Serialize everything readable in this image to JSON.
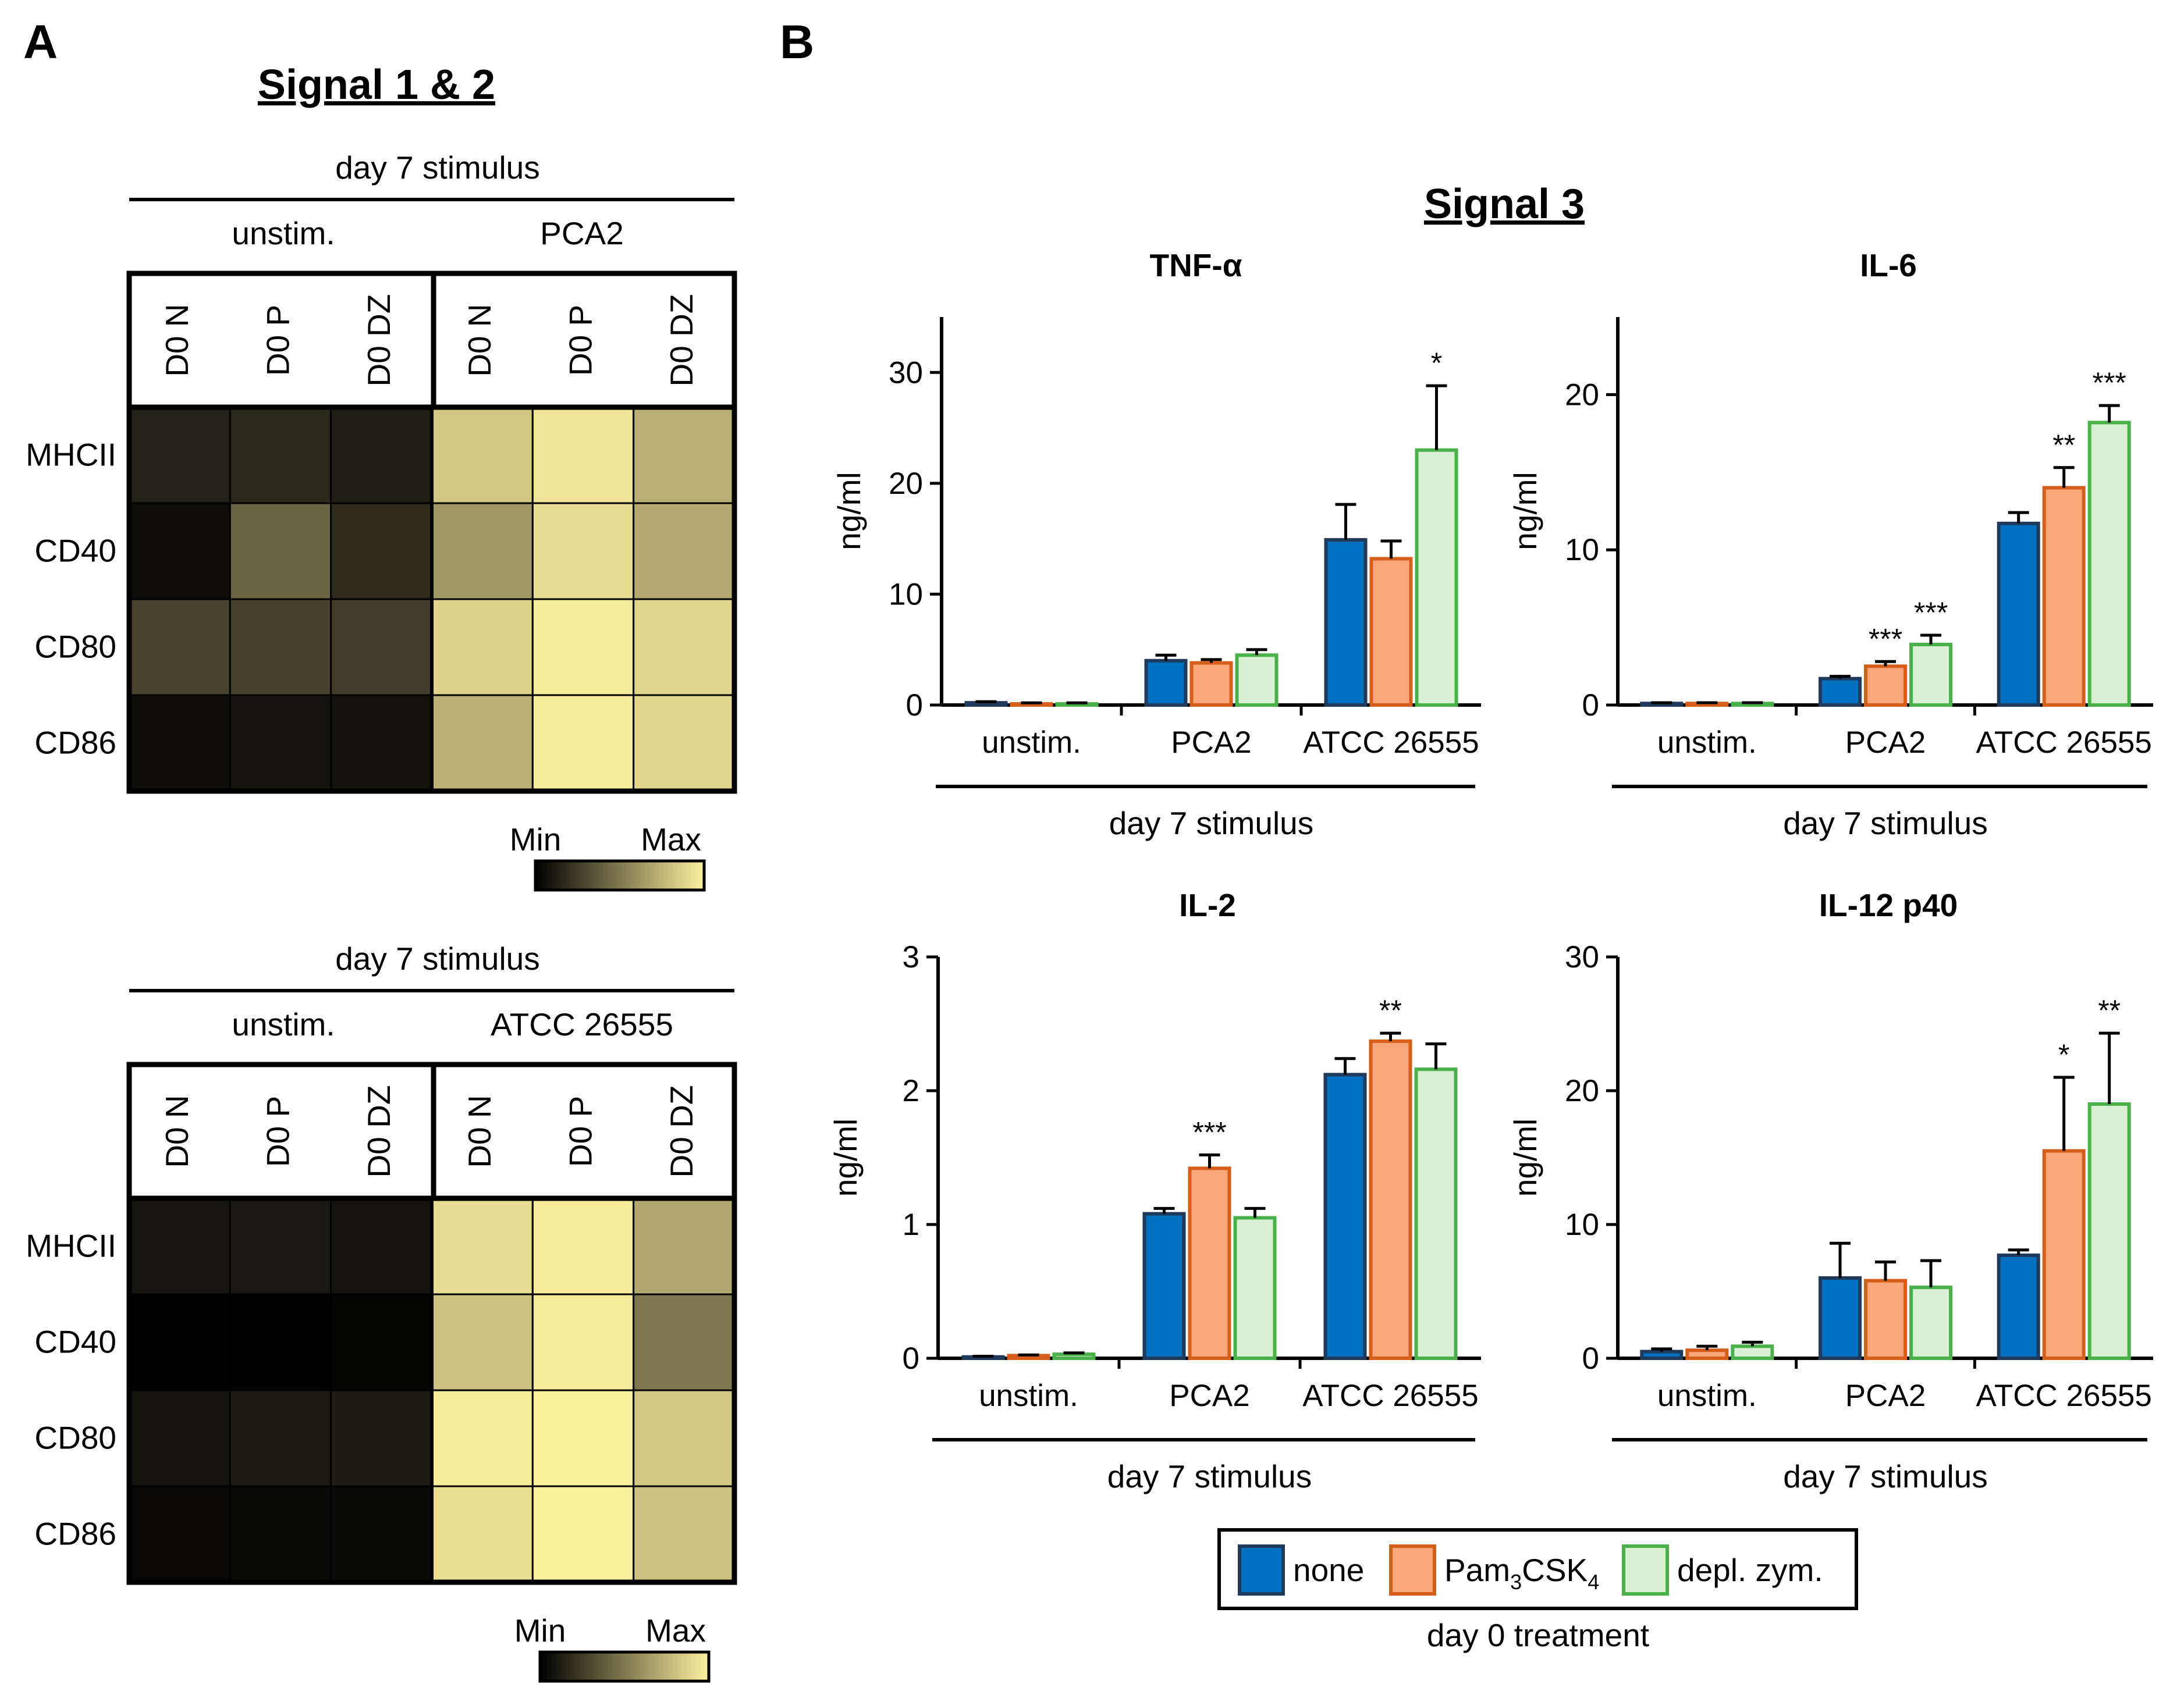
{
  "panels": {
    "a": "A",
    "b": "B"
  },
  "heatmap_title": "Signal 1 & 2",
  "colorbar": {
    "min": "Min",
    "max": "Max",
    "colors": [
      "#000000",
      "#fff1a0"
    ]
  },
  "chart_data": [
    {
      "type": "heatmap",
      "title": "day 7 stimulus",
      "groups": [
        "unstim.",
        "PCA2"
      ],
      "columns": [
        "D0 N",
        "D0 P",
        "D0 DZ",
        "D0 N",
        "D0 P",
        "D0 DZ"
      ],
      "rows": [
        "MHCII",
        "CD40",
        "CD80",
        "CD86"
      ],
      "values": [
        [
          0.14,
          0.17,
          0.13,
          0.82,
          0.95,
          0.73
        ],
        [
          0.05,
          0.42,
          0.18,
          0.63,
          0.91,
          0.71
        ],
        [
          0.28,
          0.27,
          0.25,
          0.87,
          0.97,
          0.88
        ],
        [
          0.06,
          0.08,
          0.07,
          0.73,
          0.98,
          0.89
        ]
      ],
      "scale": [
        "Min",
        "Max"
      ]
    },
    {
      "type": "heatmap",
      "title": "day 7 stimulus",
      "groups": [
        "unstim.",
        "ATCC 26555"
      ],
      "columns": [
        "D0 N",
        "D0 P",
        "D0 DZ",
        "D0 N",
        "D0 P",
        "D0 DZ"
      ],
      "rows": [
        "MHCII",
        "CD40",
        "CD80",
        "CD86"
      ],
      "values": [
        [
          0.09,
          0.1,
          0.08,
          0.91,
          0.97,
          0.7
        ],
        [
          0.01,
          0.01,
          0.02,
          0.8,
          0.97,
          0.49
        ],
        [
          0.08,
          0.11,
          0.12,
          0.97,
          0.99,
          0.82
        ],
        [
          0.03,
          0.04,
          0.04,
          0.92,
          0.99,
          0.8
        ]
      ],
      "scale": [
        "Min",
        "Max"
      ]
    },
    {
      "type": "bar",
      "title": "TNF-α",
      "ylabel": "ng/ml",
      "xlabel": "day 7 stimulus",
      "ylim": [
        0,
        35
      ],
      "yticks": [
        0,
        10,
        20,
        30
      ],
      "categories": [
        "unstim.",
        "PCA2",
        "ATCC 26555"
      ],
      "series": [
        {
          "name": "none",
          "values": [
            0.2,
            4.0,
            14.9
          ],
          "errors": [
            0.1,
            0.5,
            3.2
          ]
        },
        {
          "name": "Pam3CSK4",
          "values": [
            0.1,
            3.8,
            13.2
          ],
          "errors": [
            0.1,
            0.3,
            1.6
          ]
        },
        {
          "name": "depl. zym.",
          "values": [
            0.1,
            4.5,
            23.0
          ],
          "errors": [
            0.1,
            0.5,
            5.8
          ]
        }
      ],
      "annotations": [
        {
          "category": 2,
          "series": 2,
          "text": "*"
        }
      ]
    },
    {
      "type": "bar",
      "title": "IL-6",
      "ylabel": "ng/ml",
      "xlabel": "day 7 stimulus",
      "ylim": [
        0,
        25
      ],
      "yticks": [
        0,
        10,
        20
      ],
      "categories": [
        "unstim.",
        "PCA2",
        "ATCC 26555"
      ],
      "series": [
        {
          "name": "none",
          "values": [
            0.1,
            1.7,
            11.7
          ],
          "errors": [
            0.05,
            0.15,
            0.7
          ]
        },
        {
          "name": "Pam3CSK4",
          "values": [
            0.1,
            2.5,
            14.0
          ],
          "errors": [
            0.05,
            0.3,
            1.3
          ]
        },
        {
          "name": "depl. zym.",
          "values": [
            0.1,
            3.9,
            18.2
          ],
          "errors": [
            0.05,
            0.6,
            1.1
          ]
        }
      ],
      "annotations": [
        {
          "category": 1,
          "series": 1,
          "text": "***"
        },
        {
          "category": 1,
          "series": 2,
          "text": "***"
        },
        {
          "category": 2,
          "series": 1,
          "text": "**"
        },
        {
          "category": 2,
          "series": 2,
          "text": "***"
        }
      ]
    },
    {
      "type": "bar",
      "title": "IL-2",
      "ylabel": "ng/ml",
      "xlabel": "day 7 stimulus",
      "ylim": [
        0,
        3
      ],
      "yticks": [
        0,
        1,
        2,
        3
      ],
      "categories": [
        "unstim.",
        "PCA2",
        "ATCC 26555"
      ],
      "series": [
        {
          "name": "none",
          "values": [
            0.01,
            1.08,
            2.12
          ],
          "errors": [
            0.005,
            0.04,
            0.12
          ]
        },
        {
          "name": "Pam3CSK4",
          "values": [
            0.02,
            1.42,
            2.37
          ],
          "errors": [
            0.005,
            0.1,
            0.06
          ]
        },
        {
          "name": "depl. zym.",
          "values": [
            0.03,
            1.05,
            2.16
          ],
          "errors": [
            0.01,
            0.07,
            0.19
          ]
        }
      ],
      "annotations": [
        {
          "category": 1,
          "series": 1,
          "text": "***"
        },
        {
          "category": 2,
          "series": 1,
          "text": "**"
        }
      ]
    },
    {
      "type": "bar",
      "title": "IL-12 p40",
      "ylabel": "ng/ml",
      "xlabel": "day 7 stimulus",
      "ylim": [
        0,
        30
      ],
      "yticks": [
        0,
        10,
        20,
        30
      ],
      "categories": [
        "unstim.",
        "PCA2",
        "ATCC 26555"
      ],
      "series": [
        {
          "name": "none",
          "values": [
            0.5,
            6.0,
            7.7
          ],
          "errors": [
            0.2,
            2.6,
            0.4
          ]
        },
        {
          "name": "Pam3CSK4",
          "values": [
            0.6,
            5.8,
            15.5
          ],
          "errors": [
            0.3,
            1.4,
            5.5
          ]
        },
        {
          "name": "depl. zym.",
          "values": [
            0.9,
            5.3,
            19.0
          ],
          "errors": [
            0.3,
            2.0,
            5.3
          ]
        }
      ],
      "annotations": [
        {
          "category": 2,
          "series": 1,
          "text": "*"
        },
        {
          "category": 2,
          "series": 2,
          "text": "**"
        }
      ]
    }
  ],
  "signal3_title": "Signal 3",
  "legend": {
    "items": [
      {
        "label": "none",
        "fill": "#0070c0",
        "stroke": "#1f3a5a"
      },
      {
        "label": "Pam",
        "sub": "3",
        "mid": "CSK",
        "sub2": "4",
        "fill": "#f9a67a",
        "stroke": "#d45e1a"
      },
      {
        "label": "depl. zym.",
        "fill": "#d9f0d3",
        "stroke": "#4ab04a"
      }
    ],
    "title": "day 0 treatment"
  }
}
